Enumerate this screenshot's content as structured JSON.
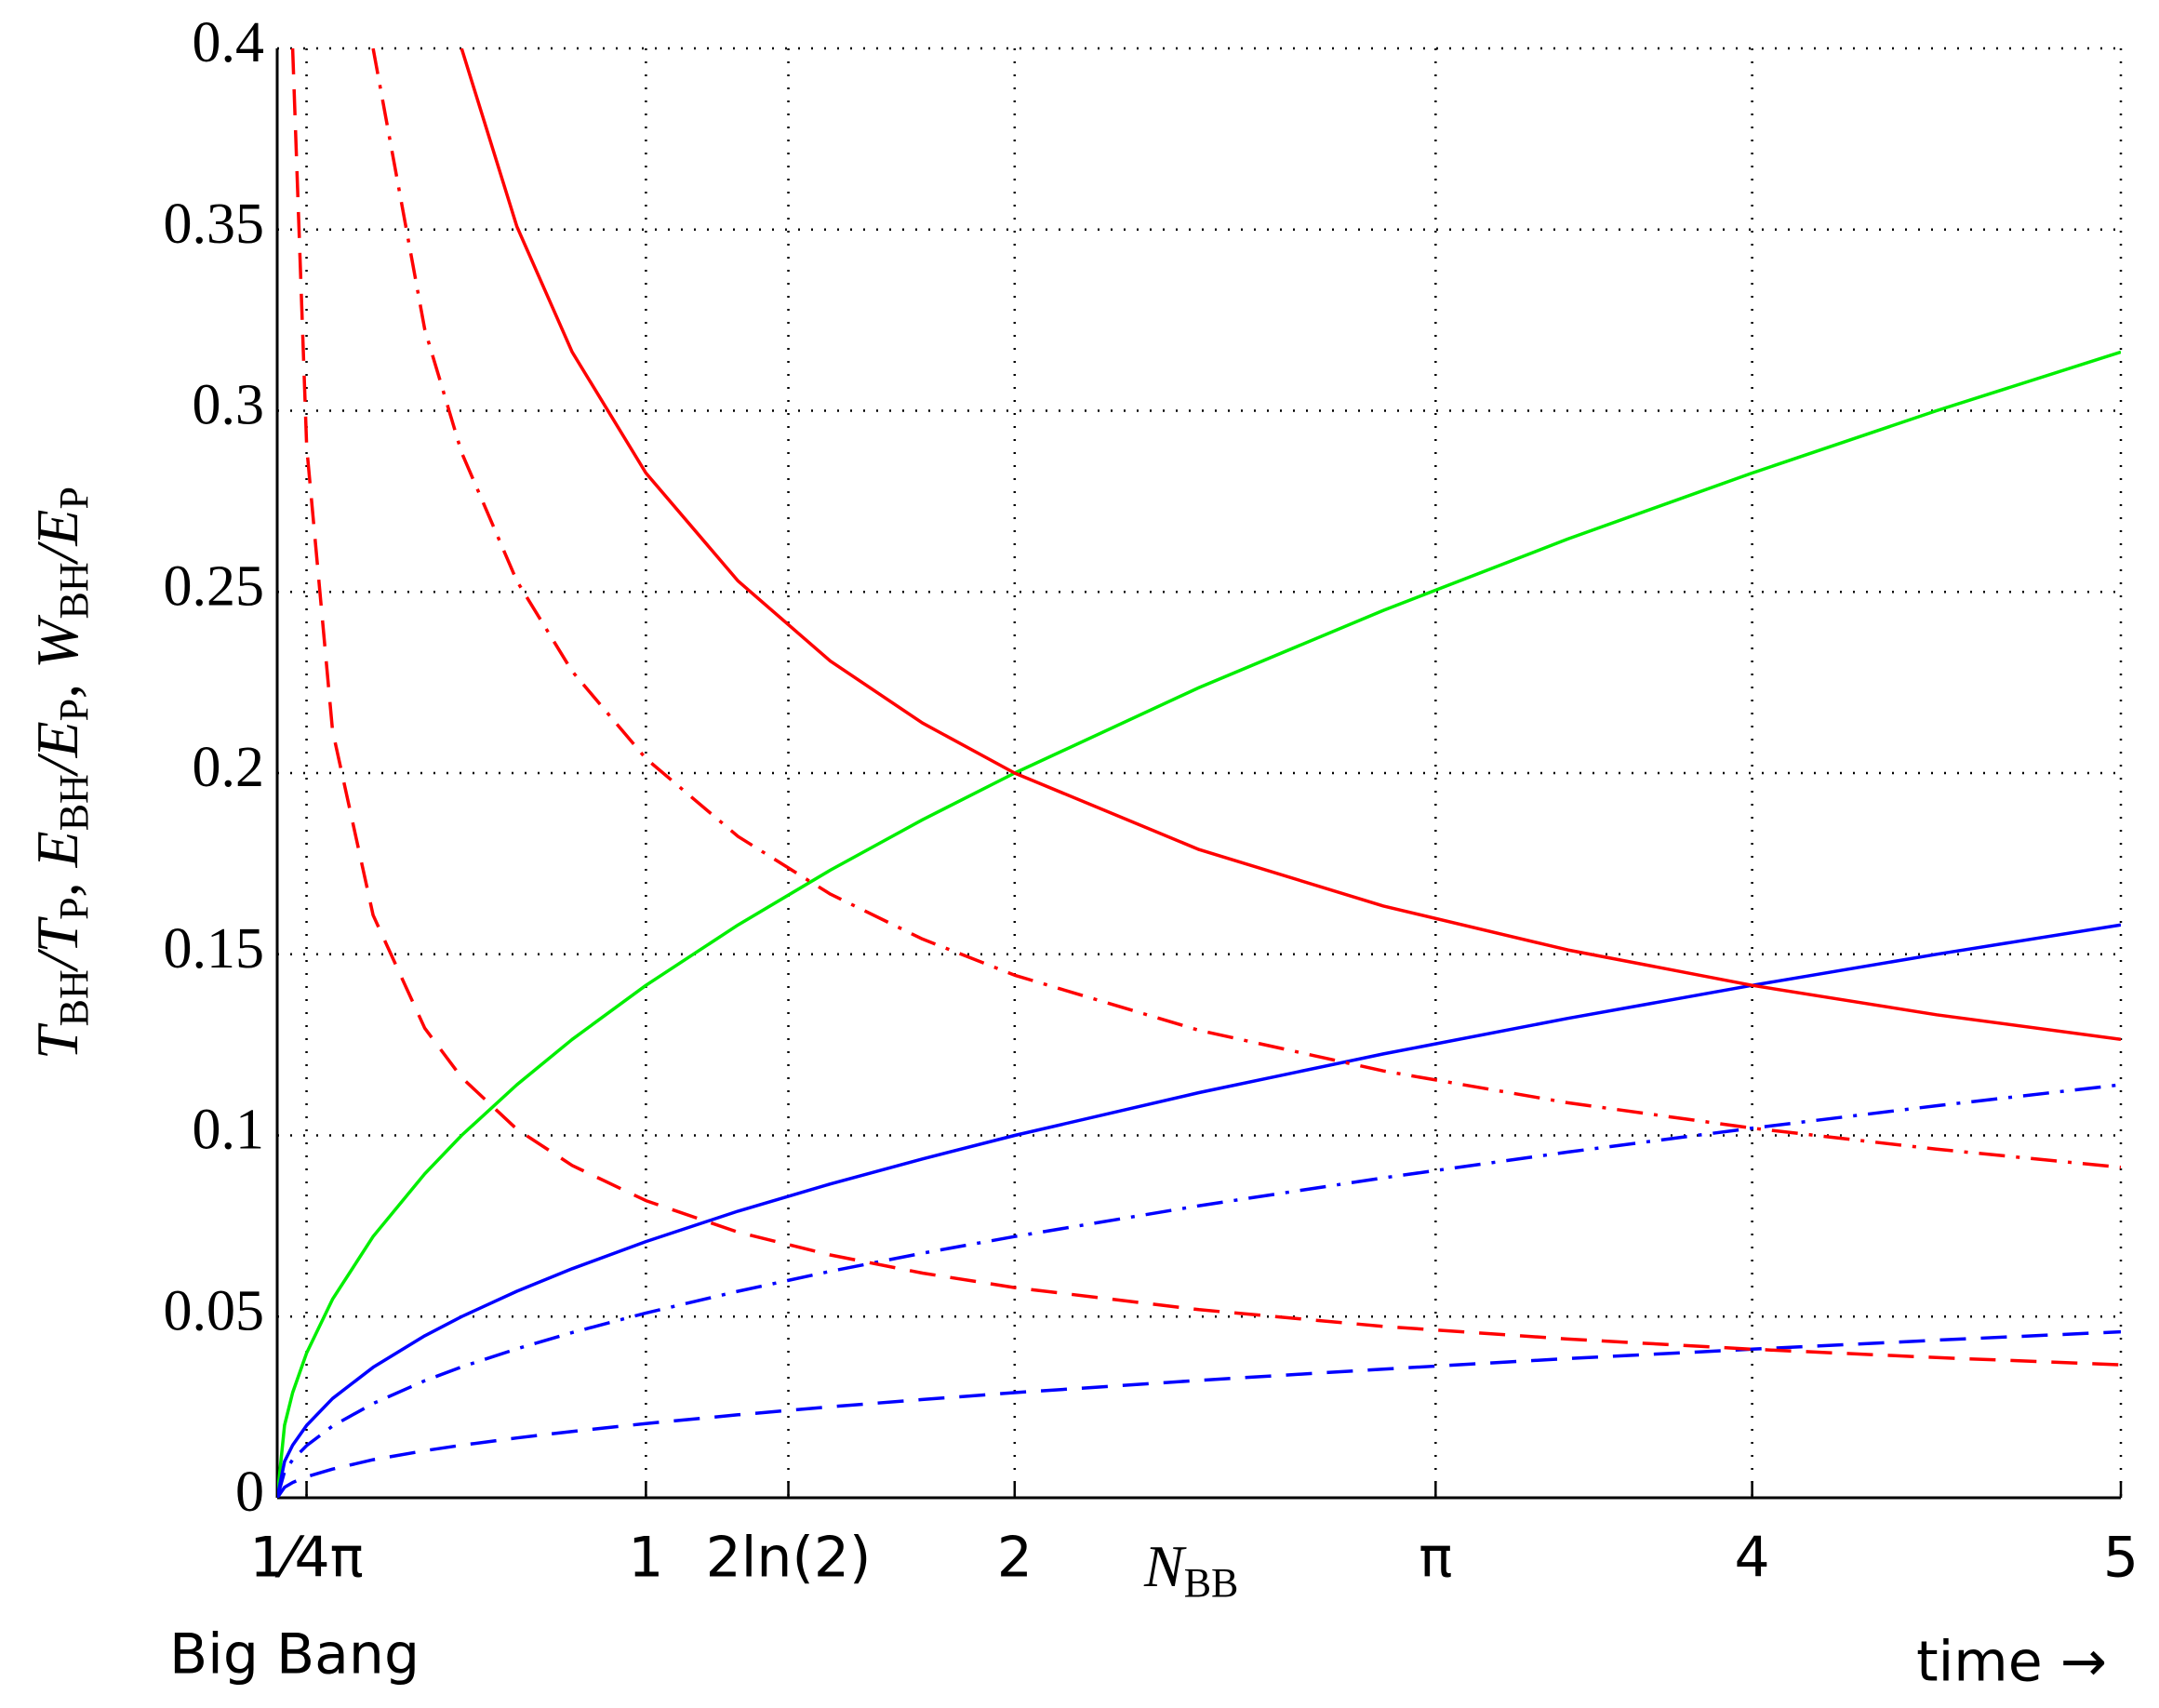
{
  "chart_data": {
    "type": "line",
    "xlabel": [
      "N",
      "BB"
    ],
    "ylabel": [
      "T",
      "BH",
      "/T",
      "P",
      ", E",
      "BH",
      "/E",
      "P",
      ", W",
      "BH",
      "/E",
      "P"
    ],
    "annotations": [
      "Big Bang",
      "time →"
    ],
    "x": [
      0,
      0.02,
      0.042,
      0.08,
      0.15,
      0.26,
      0.4,
      0.5,
      0.65,
      0.8,
      1,
      1.25,
      1.5,
      1.75,
      2,
      2.5,
      3,
      3.5,
      4,
      4.5,
      5
    ],
    "series": [
      {
        "color": "#00ee00",
        "dash": "solid",
        "values": [
          0,
          0.02,
          0.029,
          0.04,
          0.0548,
          0.0721,
          0.0894,
          0.1,
          0.114,
          0.1265,
          0.1414,
          0.1581,
          0.1732,
          0.1871,
          0.2,
          0.2236,
          0.2449,
          0.2646,
          0.2828,
          0.3,
          0.3162
        ]
      },
      {
        "color": "#0000ff",
        "dash": "solid",
        "values": [
          0,
          0.01,
          0.0145,
          0.02,
          0.0274,
          0.036,
          0.0447,
          0.05,
          0.057,
          0.0632,
          0.0707,
          0.0791,
          0.0866,
          0.0935,
          0.1,
          0.1118,
          0.1225,
          0.1323,
          0.1414,
          0.15,
          0.1581
        ]
      },
      {
        "color": "#0000ff",
        "dash": "dashdot",
        "values": [
          0,
          0.0072,
          0.0105,
          0.0144,
          0.0198,
          0.026,
          0.0323,
          0.0361,
          0.0411,
          0.0456,
          0.051,
          0.057,
          0.0625,
          0.0675,
          0.0721,
          0.0806,
          0.0883,
          0.0954,
          0.102,
          0.1082,
          0.114
        ]
      },
      {
        "color": "#0000ff",
        "dash": "dashed",
        "values": [
          0,
          0.0029,
          0.0042,
          0.0058,
          0.0079,
          0.0105,
          0.013,
          0.0145,
          0.0165,
          0.0183,
          0.0205,
          0.0229,
          0.0251,
          0.0271,
          0.029,
          0.0324,
          0.0355,
          0.0384,
          0.041,
          0.0435,
          0.0458
        ]
      },
      {
        "color": "#ff0000",
        "dash": "solid",
        "values": [
          null,
          null,
          null,
          null,
          null,
          null,
          null,
          0.4,
          0.3508,
          0.3162,
          0.2828,
          0.253,
          0.2309,
          0.2138,
          0.2,
          0.1789,
          0.1633,
          0.1512,
          0.1414,
          0.1333,
          0.1265
        ]
      },
      {
        "color": "#ff0000",
        "dash": "dashdot",
        "values": [
          null,
          null,
          null,
          null,
          null,
          0.4,
          0.3225,
          0.2885,
          0.253,
          0.2281,
          0.204,
          0.1825,
          0.1666,
          0.1542,
          0.1442,
          0.129,
          0.1178,
          0.109,
          0.102,
          0.0962,
          0.0912
        ]
      },
      {
        "color": "#ff0000",
        "dash": "dashed",
        "values": [
          null,
          null,
          0.4,
          0.29,
          0.2117,
          0.1608,
          0.1296,
          0.116,
          0.1017,
          0.0917,
          0.082,
          0.0733,
          0.067,
          0.062,
          0.058,
          0.0519,
          0.0473,
          0.0438,
          0.041,
          0.0387,
          0.0367
        ]
      }
    ],
    "xlim": [
      0,
      5
    ],
    "ylim": [
      0,
      0.4
    ],
    "xticks": [
      {
        "value": 0.0796,
        "label": "1⁄4π"
      },
      1,
      {
        "value": 1.3863,
        "label": "2ln(2)"
      },
      2,
      {
        "value": 3.1416,
        "label": "π"
      },
      4,
      5
    ],
    "yticks": [
      0,
      0.05,
      0.1,
      0.15,
      0.2,
      0.25,
      0.3,
      0.35,
      0.4
    ],
    "grid": true
  }
}
